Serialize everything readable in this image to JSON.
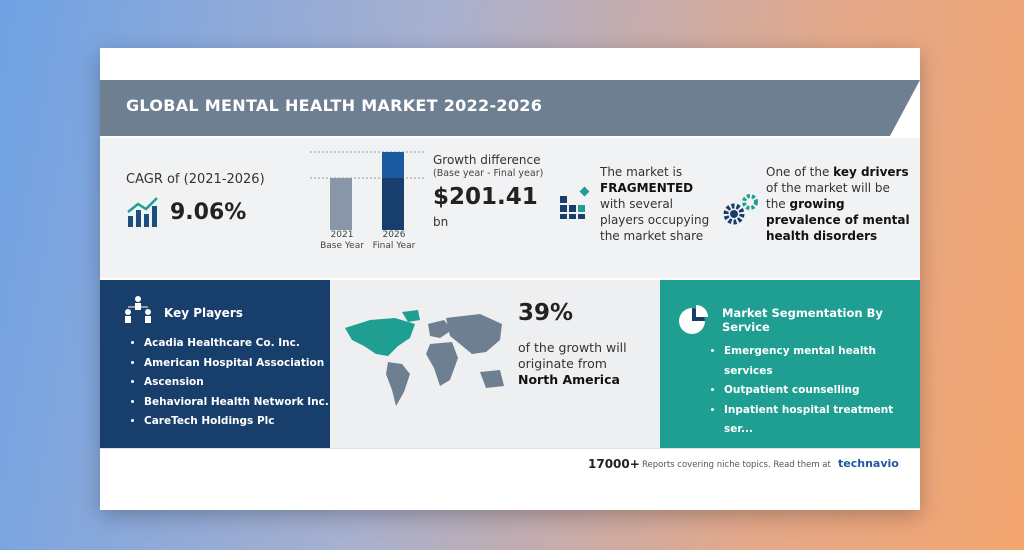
{
  "header": {
    "title": "GLOBAL MENTAL HEALTH MARKET 2022-2026"
  },
  "cagr": {
    "label": "CAGR of (2021-2026)",
    "value": "9.06%"
  },
  "growth": {
    "years": [
      {
        "year": "2021",
        "label": "Base Year"
      },
      {
        "year": "2026",
        "label": "Final Year"
      }
    ],
    "title": "Growth difference",
    "subtitle": "(Base year - Final year)",
    "value": "$201.41",
    "unit": "bn"
  },
  "vendor_landscape": {
    "before": "The market is",
    "highlight": "FRAGMENTED",
    "after": "with several players occupying the market share"
  },
  "drivers": {
    "before": "One of the",
    "highlight": "key drivers",
    "middle": "of the market will be the",
    "driver": "growing prevalence of mental health disorders"
  },
  "key_players": {
    "title": "Key Players",
    "items": [
      "Acadia Healthcare Co. Inc.",
      "American Hospital Association",
      "Ascension",
      "Behavioral Health Network Inc.",
      "CareTech Holdings Plc"
    ]
  },
  "region": {
    "share": "39%",
    "text": "of the growth will originate from",
    "region": "North America"
  },
  "segmentation": {
    "title": "Market Segmentation By Service",
    "items": [
      "Emergency mental health services",
      "Outpatient counselling",
      "Inpatient hospital treatment ser..."
    ]
  },
  "footer": {
    "count": "17000+",
    "text": "Reports covering niche topics. Read them at",
    "brand": "technavio"
  }
}
